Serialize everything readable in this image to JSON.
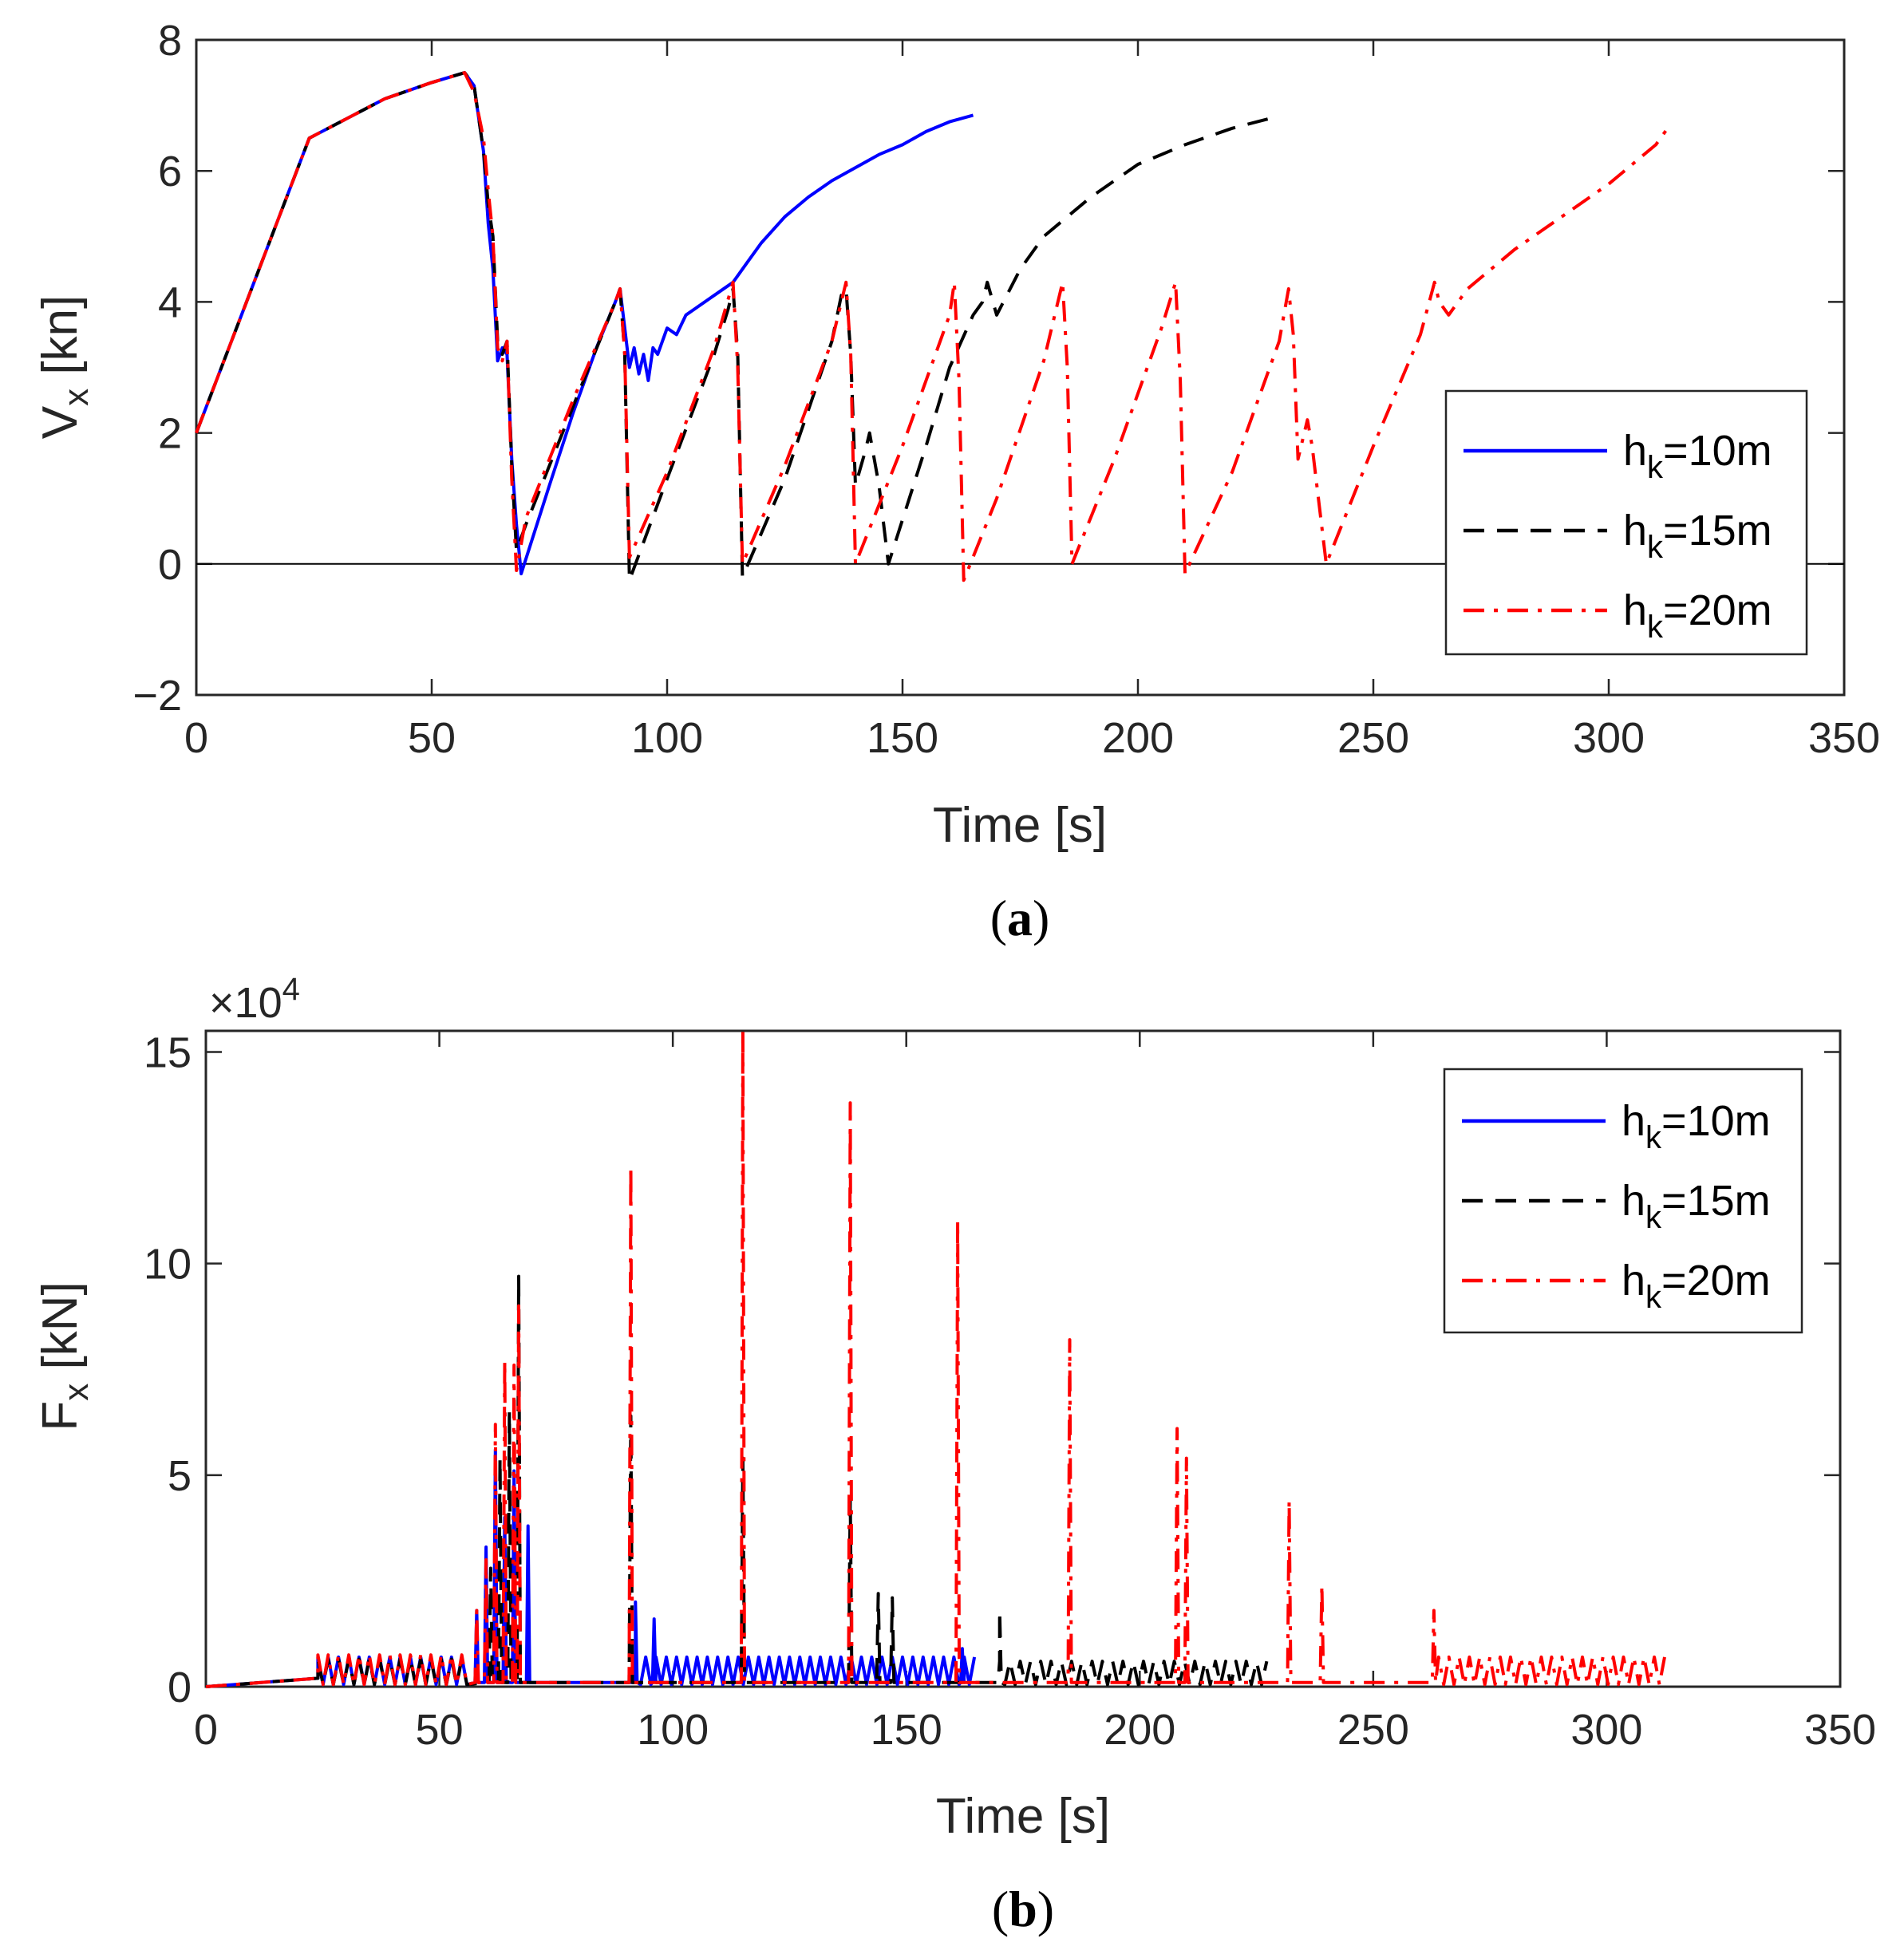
{
  "colors": {
    "h10": "#0000ff",
    "h15": "#000000",
    "h20": "#ff0000",
    "axis": "#262626",
    "zero_line": "#000000"
  },
  "chart_data": [
    {
      "type": "line",
      "panel": "a",
      "caption": {
        "open": "(",
        "letter": "a",
        "close": ")"
      },
      "xlabel": "Time [s]",
      "ylabel": {
        "main": "V",
        "sub": "x",
        "unit": " [kn]"
      },
      "xlim": [
        0,
        350
      ],
      "ylim": [
        -2,
        8
      ],
      "xticks": [
        0,
        50,
        100,
        150,
        200,
        250,
        300,
        350
      ],
      "xtick_labels": [
        "0",
        "50",
        "100",
        "150",
        "200",
        "250",
        "300",
        "350"
      ],
      "yticks": [
        -2,
        0,
        2,
        4,
        6,
        8
      ],
      "ytick_labels": [
        "−2",
        "0",
        "2",
        "4",
        "6",
        "8"
      ],
      "zero_line": true,
      "legend": {
        "position": "right",
        "entries": [
          {
            "prefix": "h",
            "sub": "k",
            "suffix": "=10m",
            "style": "solid",
            "color": "#0000ff"
          },
          {
            "prefix": "h",
            "sub": "k",
            "suffix": "=15m",
            "style": "dashed",
            "color": "#000000"
          },
          {
            "prefix": "h",
            "sub": "k",
            "suffix": "=20m",
            "style": "dashdot",
            "color": "#ff0000"
          }
        ]
      },
      "series": [
        {
          "name": "hk=10m",
          "color": "#0000ff",
          "style": "solid",
          "x": [
            0,
            24,
            32,
            40,
            50,
            57,
            59,
            61,
            62,
            63,
            64,
            65,
            66,
            67,
            68,
            69,
            75,
            80,
            85,
            89,
            90,
            91,
            92,
            93,
            94,
            95,
            96,
            97,
            98,
            100,
            102,
            104,
            106,
            110,
            114,
            115,
            117,
            120,
            125,
            130,
            135,
            140,
            145,
            150,
            155,
            160,
            165
          ],
          "y": [
            2.0,
            6.5,
            6.8,
            7.1,
            7.35,
            7.5,
            7.3,
            6.3,
            5.2,
            4.5,
            3.1,
            3.3,
            3.2,
            1.6,
            0.6,
            -0.15,
            1.2,
            2.3,
            3.3,
            4.0,
            4.2,
            3.6,
            3.0,
            3.3,
            2.9,
            3.2,
            2.8,
            3.3,
            3.2,
            3.6,
            3.5,
            3.8,
            3.9,
            4.1,
            4.3,
            4.4,
            4.6,
            4.9,
            5.3,
            5.6,
            5.85,
            6.05,
            6.25,
            6.4,
            6.6,
            6.75,
            6.85
          ]
        },
        {
          "name": "hk=15m",
          "color": "#000000",
          "style": "dashed",
          "x": [
            0,
            24,
            32,
            40,
            50,
            57,
            59,
            61,
            62,
            63,
            64,
            65,
            66,
            67,
            68,
            70,
            80,
            89,
            90,
            91,
            92,
            100,
            110,
            113,
            114,
            115,
            116,
            125,
            135,
            137,
            138,
            139,
            140,
            142,
            143,
            145,
            147,
            155,
            160,
            165,
            167,
            168,
            170,
            175,
            180,
            190,
            200,
            210,
            220,
            228
          ],
          "y": [
            2.0,
            6.5,
            6.8,
            7.1,
            7.35,
            7.5,
            7.3,
            6.3,
            5.5,
            5.0,
            3.4,
            3.2,
            3.4,
            1.5,
            0.2,
            0.6,
            2.4,
            4.0,
            4.2,
            3.2,
            -0.25,
            1.3,
            3.2,
            3.9,
            4.2,
            3.2,
            -0.2,
            1.3,
            3.4,
            4.1,
            4.2,
            3.2,
            1.2,
            1.7,
            2.0,
            1.2,
            0.0,
            1.8,
            3.0,
            3.8,
            4.0,
            4.3,
            3.8,
            4.5,
            5.0,
            5.6,
            6.1,
            6.4,
            6.65,
            6.8
          ]
        },
        {
          "name": "hk=20m",
          "color": "#ff0000",
          "style": "dashdot",
          "x": [
            0,
            24,
            32,
            40,
            50,
            57,
            59,
            61,
            62,
            63,
            64,
            65,
            66,
            67,
            68,
            70,
            80,
            89,
            90,
            91,
            92,
            100,
            110,
            114,
            115,
            116,
            125,
            135,
            138,
            139,
            140,
            150,
            160,
            161,
            162,
            163,
            170,
            180,
            184,
            185,
            186,
            195,
            205,
            208,
            209,
            210,
            220,
            230,
            232,
            233,
            234,
            235,
            236,
            237,
            238,
            240,
            250,
            260,
            263,
            264,
            266,
            270,
            280,
            290,
            300,
            310,
            313
          ],
          "y": [
            2.0,
            6.5,
            6.8,
            7.1,
            7.35,
            7.5,
            7.2,
            6.5,
            5.7,
            5.0,
            3.3,
            3.1,
            3.4,
            1.3,
            -0.1,
            0.7,
            2.5,
            4.0,
            4.2,
            3.2,
            0.1,
            1.4,
            3.3,
            4.3,
            3.0,
            0.0,
            1.5,
            3.4,
            4.3,
            3.2,
            0.0,
            1.8,
            3.8,
            4.3,
            2.8,
            -0.25,
            1.0,
            3.1,
            4.3,
            3.0,
            0.0,
            1.6,
            3.6,
            4.3,
            2.8,
            -0.15,
            1.4,
            3.4,
            4.2,
            3.5,
            1.6,
            1.9,
            2.2,
            1.8,
            1.2,
            0.0,
            1.8,
            3.5,
            4.3,
            4.0,
            3.8,
            4.2,
            4.8,
            5.3,
            5.8,
            6.4,
            6.7
          ]
        }
      ]
    },
    {
      "type": "line",
      "panel": "b",
      "caption": {
        "open": "(",
        "letter": "b",
        "close": ")"
      },
      "xlabel": "Time [s]",
      "ylabel": {
        "main": "F",
        "sub": "x",
        "unit": " [kN]"
      },
      "multiplier": {
        "base": "×10",
        "exp": "4"
      },
      "xlim": [
        0,
        350
      ],
      "ylim": [
        0,
        15.5
      ],
      "xticks": [
        0,
        50,
        100,
        150,
        200,
        250,
        300,
        350
      ],
      "xtick_labels": [
        "0",
        "50",
        "100",
        "150",
        "200",
        "250",
        "300",
        "350"
      ],
      "yticks": [
        0,
        5,
        10,
        15
      ],
      "ytick_labels": [
        "0",
        "5",
        "10",
        "15"
      ],
      "legend": {
        "position": "top-right",
        "entries": [
          {
            "prefix": "h",
            "sub": "k",
            "suffix": "=10m",
            "style": "solid",
            "color": "#0000ff"
          },
          {
            "prefix": "h",
            "sub": "k",
            "suffix": "=15m",
            "style": "dashed",
            "color": "#000000"
          },
          {
            "prefix": "h",
            "sub": "k",
            "suffix": "=20m",
            "style": "dashdot",
            "color": "#ff0000"
          }
        ]
      },
      "series": [
        {
          "name": "hk=10m",
          "color": "#0000ff",
          "style": "solid",
          "baseline_segments": [
            [
              0,
              24,
              0.0,
              0.2
            ]
          ],
          "oscillation_bands": [
            [
              24,
              57,
              0.7
            ],
            [
              92,
              165,
              0.7
            ]
          ],
          "spikes": [
            [
              58,
              1.8
            ],
            [
              60,
              3.3
            ],
            [
              62,
              5.6
            ],
            [
              64,
              4.0
            ],
            [
              66,
              5.1
            ],
            [
              69,
              3.8
            ],
            [
              92,
              2.0
            ],
            [
              96,
              1.6
            ],
            [
              162,
              0.9
            ]
          ]
        },
        {
          "name": "hk=15m",
          "color": "#000000",
          "style": "dashed",
          "baseline_segments": [
            [
              0,
              24,
              0.0,
              0.2
            ]
          ],
          "oscillation_bands": [
            [
              24,
              57,
              0.65
            ],
            [
              170,
              228,
              0.6
            ]
          ],
          "spikes": [
            [
              61,
              2.8
            ],
            [
              63,
              5.4
            ],
            [
              65,
              6.5
            ],
            [
              67,
              9.7
            ],
            [
              91,
              6.4
            ],
            [
              115,
              5.4
            ],
            [
              138,
              4.5
            ],
            [
              144,
              2.2
            ],
            [
              147,
              2.1
            ],
            [
              170,
              1.8
            ]
          ]
        },
        {
          "name": "hk=20m",
          "color": "#ff0000",
          "style": "dashdot",
          "baseline_segments": [
            [
              0,
              24,
              0.0,
              0.2
            ]
          ],
          "oscillation_bands": [
            [
              24,
              57,
              0.75
            ],
            [
              264,
              313,
              0.7
            ]
          ],
          "spikes": [
            [
              58,
              1.8
            ],
            [
              60,
              3.0
            ],
            [
              62,
              6.2
            ],
            [
              64,
              7.7
            ],
            [
              66,
              7.6
            ],
            [
              67,
              9.0
            ],
            [
              91,
              12.3
            ],
            [
              115,
              15.5
            ],
            [
              138,
              13.8
            ],
            [
              161,
              11.0
            ],
            [
              185,
              8.2
            ],
            [
              208,
              6.1
            ],
            [
              210,
              5.4
            ],
            [
              232,
              4.4
            ],
            [
              239,
              2.4
            ],
            [
              263,
              1.8
            ]
          ]
        }
      ]
    }
  ]
}
